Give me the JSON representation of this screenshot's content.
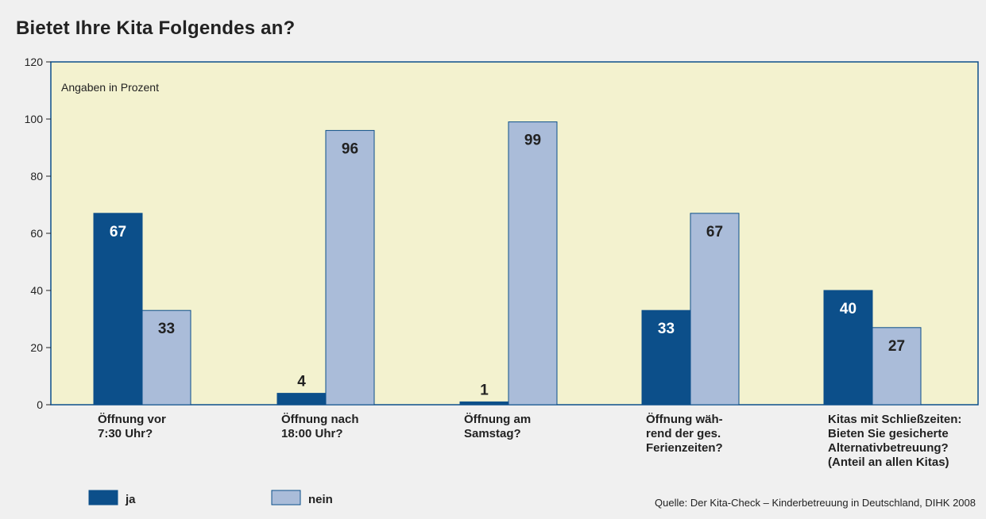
{
  "title": "Bietet Ihre Kita Folgendes an?",
  "chart_data": {
    "type": "bar",
    "title": "Bietet Ihre Kita Folgendes an?",
    "unit_note": "Angaben in Prozent",
    "categories": [
      [
        "Öffnung vor",
        "7:30 Uhr?"
      ],
      [
        "Öffnung nach",
        "18:00 Uhr?"
      ],
      [
        "Öffnung am",
        "Samstag?"
      ],
      [
        "Öffnung wäh-",
        "rend der ges.",
        "Ferienzeiten?"
      ],
      [
        "Kitas mit Schließzeiten:",
        "Bieten Sie gesicherte",
        "Alternativbetreuung?",
        "(Anteil an allen Kitas)"
      ]
    ],
    "series": [
      {
        "name": "ja",
        "values": [
          67,
          4,
          1,
          33,
          40
        ],
        "color": "#0c4f8a"
      },
      {
        "name": "nein",
        "values": [
          33,
          96,
          99,
          67,
          27
        ],
        "color": "#aabcd9"
      }
    ],
    "ylim": [
      0,
      120
    ],
    "yticks": [
      0,
      20,
      40,
      60,
      80,
      100,
      120
    ],
    "xlabel": "",
    "ylabel": "",
    "legend_position": "bottom-left",
    "plot_background": "#f3f2cf",
    "border_color": "#0c4f8a",
    "source": "Quelle: Der Kita-Check – Kinderbetreuung in Deutschland, DIHK 2008"
  }
}
